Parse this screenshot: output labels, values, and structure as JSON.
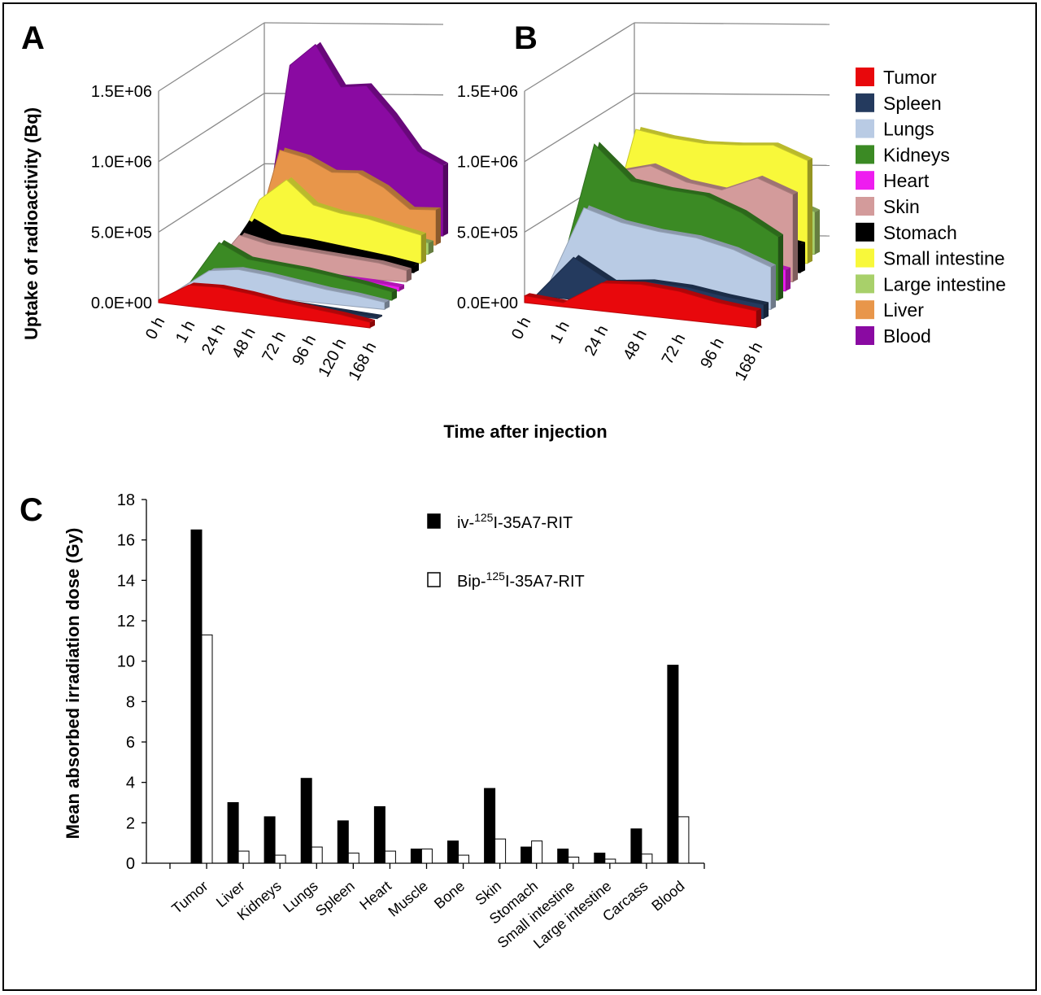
{
  "panels": {
    "a_letter": "A",
    "b_letter": "B",
    "c_letter": "C"
  },
  "legend": {
    "items": [
      {
        "label": "Tumor",
        "color": "#e8080c"
      },
      {
        "label": "Spleen",
        "color": "#243a5e"
      },
      {
        "label": "Lungs",
        "color": "#b9cbe4"
      },
      {
        "label": "Kidneys",
        "color": "#3b8a24"
      },
      {
        "label": "Heart",
        "color": "#ee1cf0"
      },
      {
        "label": "Skin",
        "color": "#d39b9b"
      },
      {
        "label": "Stomach",
        "color": "#000000"
      },
      {
        "label": "Small intestine",
        "color": "#f8f83a"
      },
      {
        "label": "Large intestine",
        "color": "#a8d06a"
      },
      {
        "label": "Liver",
        "color": "#e8964a"
      },
      {
        "label": "Blood",
        "color": "#8a0aa2"
      }
    ]
  },
  "chart_data": [
    {
      "id": "A",
      "type": "area",
      "subtype": "3d-area",
      "ylabel": "Uptake of radioactivity (Bq)",
      "xlabel": "Time after injection",
      "y_ticks": [
        "0.0E+00",
        "5.0E+05",
        "1.0E+06",
        "1.5E+06"
      ],
      "ylim": [
        0,
        1500000
      ],
      "categories": [
        "0 h",
        "1 h",
        "24 h",
        "48 h",
        "72 h",
        "96 h",
        "120 h",
        "168 h"
      ],
      "series": [
        {
          "name": "Tumor",
          "values": [
            20000,
            150000,
            160000,
            140000,
            110000,
            90000,
            70000,
            40000
          ]
        },
        {
          "name": "Spleen",
          "values": [
            0,
            90000,
            70000,
            60000,
            40000,
            30000,
            20000,
            10000
          ]
        },
        {
          "name": "Lungs",
          "values": [
            0,
            150000,
            180000,
            160000,
            130000,
            100000,
            80000,
            50000
          ]
        },
        {
          "name": "Kidneys",
          "values": [
            0,
            300000,
            200000,
            180000,
            160000,
            130000,
            100000,
            60000
          ]
        },
        {
          "name": "Heart",
          "values": [
            0,
            100000,
            90000,
            80000,
            70000,
            60000,
            50000,
            30000
          ]
        },
        {
          "name": "Skin",
          "values": [
            0,
            250000,
            200000,
            180000,
            160000,
            140000,
            120000,
            80000
          ]
        },
        {
          "name": "Stomach",
          "values": [
            0,
            300000,
            200000,
            180000,
            150000,
            120000,
            90000,
            50000
          ]
        },
        {
          "name": "Small intestine",
          "values": [
            0,
            400000,
            550000,
            380000,
            330000,
            300000,
            250000,
            200000
          ]
        },
        {
          "name": "Large intestine",
          "values": [
            0,
            200000,
            180000,
            190000,
            160000,
            140000,
            120000,
            80000
          ]
        },
        {
          "name": "Liver",
          "values": [
            0,
            650000,
            600000,
            500000,
            500000,
            400000,
            250000,
            250000
          ]
        },
        {
          "name": "Blood",
          "values": [
            0,
            1200000,
            1350000,
            1050000,
            1060000,
            850000,
            600000,
            500000
          ]
        }
      ]
    },
    {
      "id": "B",
      "type": "area",
      "subtype": "3d-area",
      "y_ticks": [
        "0.0E+00",
        "5.0E+05",
        "1.0E+06",
        "1.5E+06"
      ],
      "ylim": [
        0,
        1500000
      ],
      "categories": [
        "0 h",
        "1 h",
        "24 h",
        "48 h",
        "72 h",
        "96 h",
        "168 h"
      ],
      "series": [
        {
          "name": "Tumor",
          "values": [
            50000,
            30000,
            200000,
            220000,
            200000,
            150000,
            120000
          ]
        },
        {
          "name": "Spleen",
          "values": [
            0,
            300000,
            150000,
            180000,
            170000,
            130000,
            100000
          ]
        },
        {
          "name": "Lungs",
          "values": [
            0,
            600000,
            520000,
            480000,
            460000,
            400000,
            300000
          ]
        },
        {
          "name": "Kidneys",
          "values": [
            0,
            1000000,
            760000,
            720000,
            700000,
            600000,
            450000
          ]
        },
        {
          "name": "Heart",
          "values": [
            0,
            250000,
            260000,
            240000,
            220000,
            200000,
            150000
          ]
        },
        {
          "name": "Skin",
          "values": [
            0,
            700000,
            760000,
            660000,
            620000,
            720000,
            620000
          ]
        },
        {
          "name": "Stomach",
          "values": [
            0,
            300000,
            300000,
            280000,
            260000,
            250000,
            200000
          ]
        },
        {
          "name": "Small intestine",
          "values": [
            0,
            900000,
            850000,
            820000,
            820000,
            830000,
            730000
          ]
        },
        {
          "name": "Large intestine",
          "values": [
            0,
            450000,
            420000,
            420000,
            470000,
            400000,
            300000
          ]
        },
        {
          "name": "Liver",
          "values": [
            0,
            0,
            0,
            0,
            0,
            0,
            0
          ]
        },
        {
          "name": "Blood",
          "values": [
            0,
            0,
            0,
            0,
            0,
            0,
            0
          ]
        }
      ]
    },
    {
      "id": "C",
      "type": "bar",
      "ylabel": "Mean absorbed irradiation dose (Gy)",
      "ylim": [
        0,
        18
      ],
      "y_ticks": [
        "0",
        "2",
        "4",
        "6",
        "8",
        "10",
        "12",
        "14",
        "16",
        "18"
      ],
      "categories": [
        "Tumor",
        "Liver",
        "Kidneys",
        "Lungs",
        "Spleen",
        "Heart",
        "Muscle",
        "Bone",
        "Skin",
        "Stomach",
        "Small intestine",
        "Large intestine",
        "Carcass",
        "Blood"
      ],
      "series": [
        {
          "name_prefix": "iv-",
          "name_sup": "125",
          "name_suffix": "I-35A7-RIT",
          "fill": "#000000",
          "values": [
            16.5,
            3.0,
            2.3,
            4.2,
            2.1,
            2.8,
            0.7,
            1.1,
            3.7,
            0.8,
            0.7,
            0.5,
            1.7,
            9.8
          ]
        },
        {
          "name_prefix": "Bip-",
          "name_sup": "125",
          "name_suffix": "I-35A7-RIT",
          "fill": "#ffffff",
          "values": [
            11.3,
            0.6,
            0.4,
            0.8,
            0.5,
            0.6,
            0.7,
            0.4,
            1.2,
            1.1,
            0.3,
            0.2,
            0.45,
            2.3
          ]
        }
      ]
    }
  ]
}
